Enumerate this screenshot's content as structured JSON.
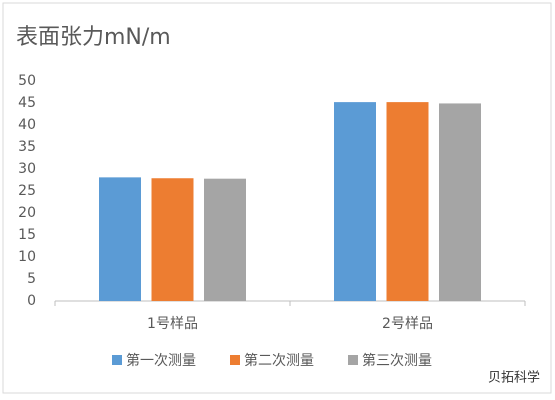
{
  "chart_data": {
    "type": "bar",
    "title": "表面张力mN/m",
    "categories": [
      "1号样品",
      "2号样品"
    ],
    "series": [
      {
        "name": "第一次测量",
        "color": "#5b9bd5",
        "values": [
          28.1,
          45.2
        ]
      },
      {
        "name": "第二次测量",
        "color": "#ed7d31",
        "values": [
          27.9,
          45.2
        ]
      },
      {
        "name": "第三次测量",
        "color": "#a5a5a5",
        "values": [
          27.8,
          44.9
        ]
      }
    ],
    "ylim": [
      0,
      50
    ],
    "yticks": [
      0,
      5,
      10,
      15,
      20,
      25,
      30,
      35,
      40,
      45,
      50
    ],
    "grid": false,
    "legend": "bottom",
    "watermark": "贝拓科学"
  }
}
